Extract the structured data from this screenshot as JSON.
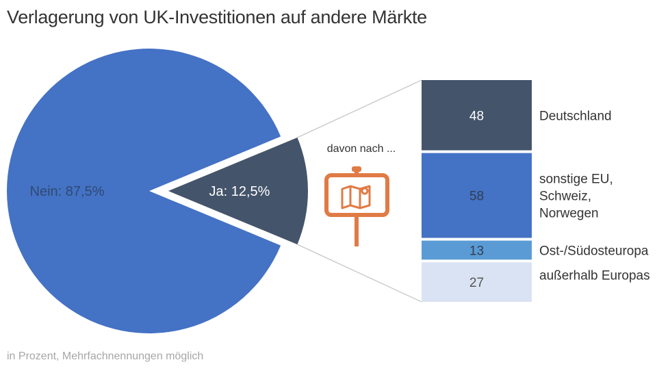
{
  "title": "Verlagerung von UK-Investitionen auf andere Märkte",
  "footnote": "in Prozent, Mehrfachnennungen möglich",
  "callout": "davon nach ...",
  "chart_data": [
    {
      "type": "pie",
      "slices": [
        {
          "label": "Nein: 87,5%",
          "value": 87.5,
          "color": "#4472c4",
          "text_color": "#2f4a73"
        },
        {
          "label": "Ja: 12,5%",
          "value": 12.5,
          "color": "#44546a",
          "text_color": "#ffffff",
          "exploded": true
        }
      ]
    },
    {
      "type": "bar",
      "orientation": "stacked-column",
      "categories": [
        "Deutschland",
        "sonstige EU, Schweiz, Norwegen",
        "Ost-/Südosteuropa",
        "außerhalb Europas"
      ],
      "category_lines": [
        [
          "Deutschland"
        ],
        [
          "sonstige EU,",
          "Schweiz,",
          "Norwegen"
        ],
        [
          "Ost-/Südosteuropa"
        ],
        [
          "außerhalb Europas"
        ]
      ],
      "values": [
        48,
        58,
        13,
        27
      ],
      "value_labels": [
        "48",
        "58",
        "13",
        "27"
      ],
      "colors": [
        "#44546a",
        "#4472c4",
        "#5b9bd5",
        "#dae3f3"
      ],
      "label_colors": [
        "#ffffff",
        "#2f3e52",
        "#2f3e52",
        "#555555"
      ]
    }
  ],
  "icon": {
    "name": "map-signpost-icon",
    "color": "#e07b45",
    "post_color": "#e07b45"
  }
}
